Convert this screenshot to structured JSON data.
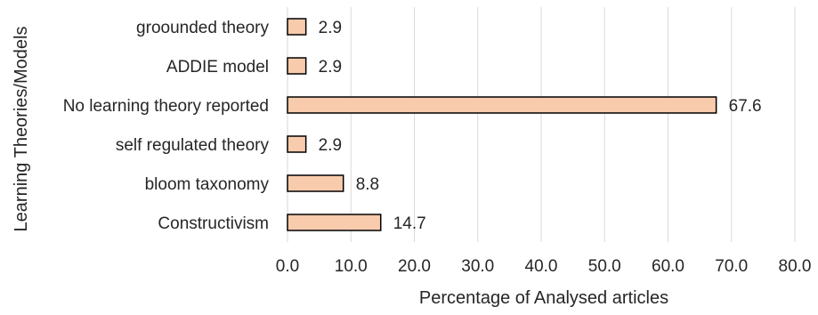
{
  "chart_data": {
    "type": "bar",
    "orientation": "horizontal",
    "categories": [
      "groounded theory",
      "ADDIE model",
      "No learning theory reported",
      "self regulated theory",
      "bloom taxonomy",
      "Constructivism"
    ],
    "values": [
      2.9,
      2.9,
      67.6,
      2.9,
      8.8,
      14.7
    ],
    "value_labels": [
      "2.9",
      "2.9",
      "67.6",
      "2.9",
      "8.8",
      "14.7"
    ],
    "xlim": [
      0,
      80
    ],
    "x_ticks": [
      0,
      10,
      20,
      30,
      40,
      50,
      60,
      70,
      80
    ],
    "x_tick_labels": [
      "0.0",
      "10.0",
      "20.0",
      "30.0",
      "40.0",
      "50.0",
      "60.0",
      "70.0",
      "80.0"
    ],
    "xlabel": "Percentage of Analysed articles",
    "ylabel": "Learning Theories/Models",
    "grid": "vertical",
    "bar_color": "#f8cbad",
    "bar_edge_color": "#000000"
  }
}
